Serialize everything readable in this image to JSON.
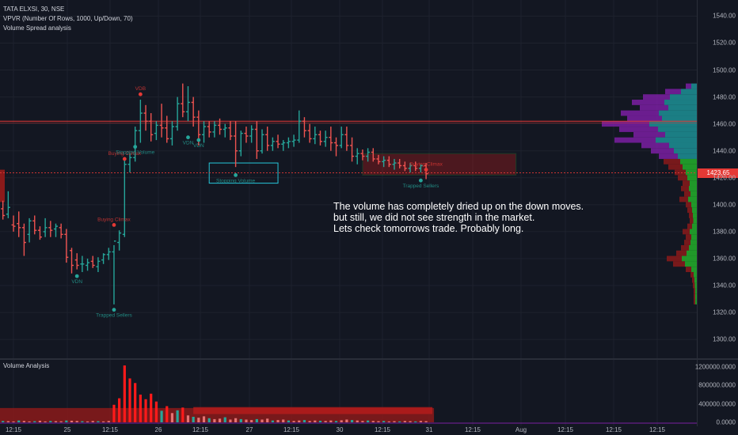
{
  "legend": {
    "symbol": "TATA ELXSI, 30, NSE",
    "indicator1": "VPVR (Number Of Rows, 1000, Up/Down, 70)",
    "indicator2": "Volume Spread analysis"
  },
  "volume_legend": "Volume Analysis",
  "note_lines": [
    "The volume has completely dried up on the down moves.",
    "but still, we did not see strength in the market.",
    "Lets check tomorrows trade. Probably long."
  ],
  "price_tag": "1423.65",
  "colors": {
    "bg": "#131722",
    "up": "#26a69a",
    "down": "#ef5350",
    "vol_bar": "#ff1a1a",
    "red_line": "#e53935",
    "vpvr_teal": "#1d8a8f",
    "vpvr_purple": "#7b1fa2",
    "vpvr_green": "#22a62a",
    "vpvr_darkred": "#8b1a1a"
  },
  "chart_data": [
    {
      "type": "ohlc",
      "symbol": "TATA ELXSI",
      "interval": "30",
      "y_axis": {
        "ticks": [
          1300,
          1320,
          1340,
          1360,
          1380,
          1400,
          1420,
          1440,
          1460,
          1480,
          1500,
          1520,
          1540
        ],
        "tick_labels": [
          "1300.00",
          "1320.00",
          "1340.00",
          "1360.00",
          "1380.00",
          "1400.00",
          "1420.00",
          "1440.00",
          "1460.00",
          "1480.00",
          "1500.00",
          "1520.00",
          "1540.00"
        ],
        "ylim": [
          1286,
          1552
        ]
      },
      "x_axis": {
        "tick_labels": [
          "12:15",
          "25",
          "12:15",
          "26",
          "12:15",
          "27",
          "12:15",
          "30",
          "12:15",
          "31",
          "12:15",
          "Aug",
          "12:15",
          "12:15",
          "12:15"
        ]
      },
      "last_price": 1423.65,
      "horizontal_line": 1462,
      "bars": [
        [
          1,
          1397,
          1403,
          1389,
          1392
        ],
        [
          2,
          1393,
          1410,
          1390,
          1398
        ],
        [
          3,
          1385,
          1392,
          1380,
          1384
        ],
        [
          4,
          1386,
          1395,
          1376,
          1383
        ],
        [
          5,
          1383,
          1386,
          1362,
          1372
        ],
        [
          6,
          1378,
          1390,
          1372,
          1388
        ],
        [
          7,
          1388,
          1392,
          1378,
          1381
        ],
        [
          8,
          1381,
          1384,
          1374,
          1376
        ],
        [
          9,
          1380,
          1390,
          1376,
          1383
        ],
        [
          10,
          1383,
          1388,
          1376,
          1381
        ],
        [
          11,
          1382,
          1386,
          1376,
          1384
        ],
        [
          12,
          1383,
          1386,
          1375,
          1378
        ],
        [
          13,
          1378,
          1382,
          1357,
          1361
        ],
        [
          14,
          1366,
          1368,
          1349,
          1355
        ],
        [
          15,
          1359,
          1364,
          1352,
          1355
        ],
        [
          16,
          1356,
          1362,
          1350,
          1356
        ],
        [
          17,
          1355,
          1360,
          1351,
          1357
        ],
        [
          18,
          1358,
          1362,
          1353,
          1355
        ],
        [
          19,
          1354,
          1361,
          1350,
          1358
        ],
        [
          20,
          1359,
          1364,
          1356,
          1363
        ],
        [
          21,
          1363,
          1368,
          1359,
          1365
        ],
        [
          22,
          1365,
          1370,
          1326,
          1373
        ],
        [
          23,
          1372,
          1381,
          1366,
          1379
        ],
        [
          24,
          1378,
          1433,
          1376,
          1430
        ],
        [
          25,
          1430,
          1438,
          1424,
          1435
        ],
        [
          26,
          1435,
          1458,
          1432,
          1455
        ],
        [
          27,
          1455,
          1478,
          1446,
          1468
        ],
        [
          28,
          1468,
          1474,
          1455,
          1462
        ],
        [
          29,
          1462,
          1468,
          1447,
          1452
        ],
        [
          30,
          1453,
          1462,
          1448,
          1459
        ],
        [
          31,
          1459,
          1475,
          1450,
          1457
        ],
        [
          32,
          1457,
          1466,
          1446,
          1449
        ],
        [
          33,
          1449,
          1462,
          1444,
          1458
        ],
        [
          34,
          1458,
          1480,
          1455,
          1475
        ],
        [
          35,
          1475,
          1490,
          1465,
          1469
        ],
        [
          36,
          1469,
          1488,
          1462,
          1476
        ],
        [
          37,
          1476,
          1480,
          1458,
          1465
        ],
        [
          38,
          1465,
          1470,
          1444,
          1452
        ],
        [
          39,
          1452,
          1462,
          1446,
          1458
        ],
        [
          40,
          1458,
          1462,
          1450,
          1454
        ],
        [
          41,
          1454,
          1462,
          1450,
          1459
        ],
        [
          42,
          1459,
          1464,
          1452,
          1456
        ],
        [
          43,
          1456,
          1460,
          1450,
          1457
        ],
        [
          44,
          1457,
          1462,
          1448,
          1451
        ],
        [
          45,
          1451,
          1462,
          1428,
          1440
        ],
        [
          46,
          1440,
          1455,
          1436,
          1453
        ],
        [
          47,
          1453,
          1458,
          1446,
          1451
        ],
        [
          48,
          1451,
          1459,
          1446,
          1456
        ],
        [
          49,
          1456,
          1462,
          1434,
          1440
        ],
        [
          50,
          1440,
          1456,
          1438,
          1452
        ],
        [
          51,
          1452,
          1458,
          1440,
          1444
        ],
        [
          52,
          1444,
          1450,
          1440,
          1447
        ],
        [
          53,
          1447,
          1452,
          1442,
          1445
        ],
        [
          54,
          1445,
          1448,
          1440,
          1446
        ],
        [
          55,
          1446,
          1450,
          1442,
          1447
        ],
        [
          56,
          1447,
          1452,
          1443,
          1448
        ],
        [
          57,
          1448,
          1470,
          1446,
          1462
        ],
        [
          58,
          1462,
          1465,
          1450,
          1455
        ],
        [
          59,
          1455,
          1460,
          1446,
          1449
        ],
        [
          60,
          1449,
          1458,
          1445,
          1452
        ],
        [
          61,
          1452,
          1455,
          1444,
          1447
        ],
        [
          62,
          1447,
          1455,
          1443,
          1450
        ],
        [
          63,
          1450,
          1458,
          1440,
          1446
        ],
        [
          64,
          1446,
          1450,
          1436,
          1444
        ],
        [
          65,
          1444,
          1458,
          1442,
          1452
        ],
        [
          66,
          1452,
          1458,
          1440,
          1444
        ],
        [
          67,
          1444,
          1450,
          1432,
          1436
        ],
        [
          68,
          1436,
          1442,
          1430,
          1438
        ],
        [
          69,
          1438,
          1441,
          1433,
          1436
        ],
        [
          70,
          1436,
          1442,
          1432,
          1439
        ],
        [
          71,
          1439,
          1442,
          1432,
          1434
        ],
        [
          72,
          1434,
          1437,
          1430,
          1432
        ],
        [
          73,
          1432,
          1436,
          1428,
          1433
        ],
        [
          74,
          1433,
          1436,
          1428,
          1430
        ],
        [
          75,
          1430,
          1434,
          1426,
          1431
        ],
        [
          76,
          1431,
          1434,
          1427,
          1429
        ],
        [
          77,
          1429,
          1432,
          1425,
          1427
        ],
        [
          78,
          1427,
          1431,
          1424,
          1429
        ],
        [
          79,
          1429,
          1432,
          1425,
          1427
        ],
        [
          80,
          1427,
          1430,
          1424,
          1429
        ],
        [
          81,
          1429,
          1431,
          1419,
          1423
        ]
      ],
      "markers": [
        {
          "label": "VDB",
          "i": 27,
          "price": 1482,
          "color": "#e53935",
          "pos": "above"
        },
        {
          "label": "Buying Climax",
          "i": 24,
          "price": 1434,
          "color": "#e53935",
          "pos": "above"
        },
        {
          "label": "Buying Climax",
          "i": 22,
          "price": 1385,
          "color": "#e53935",
          "pos": "above"
        },
        {
          "label": "Stopping Volume",
          "i": 26,
          "price": 1443,
          "color": "#26a69a",
          "pos": "below"
        },
        {
          "label": "VDN",
          "i": 36,
          "price": 1450,
          "color": "#26a69a",
          "pos": "below"
        },
        {
          "label": "VDN",
          "i": 38,
          "price": 1448,
          "color": "#26a69a",
          "pos": "below"
        },
        {
          "label": "VDN",
          "i": 15,
          "price": 1347,
          "color": "#26a69a",
          "pos": "below"
        },
        {
          "label": "Stopping Volume",
          "i": 45,
          "price": 1422,
          "color": "#26a69a",
          "pos": "below"
        },
        {
          "label": "Trapped Sellers",
          "i": 22,
          "price": 1322,
          "color": "#26a69a",
          "pos": "below"
        },
        {
          "label": "Trapped Sellers",
          "i": 80,
          "price": 1418,
          "color": "#26a69a",
          "pos": "below"
        },
        {
          "label": "Buying Climax",
          "i": 81,
          "price": 1426,
          "color": "#e53935",
          "pos": "above"
        }
      ],
      "zone_red": {
        "i_from": 69,
        "i_to": 98,
        "price_from": 1422,
        "price_to": 1438
      },
      "zone_box": {
        "i_from": 40,
        "i_to": 53,
        "price_from": 1416,
        "price_to": 1431
      },
      "vpvr_profile": [
        [
          1490,
          14
        ],
        [
          1486,
          40
        ],
        [
          1482,
          68
        ],
        [
          1478,
          82
        ],
        [
          1474,
          72
        ],
        [
          1470,
          96
        ],
        [
          1466,
          88
        ],
        [
          1462,
          120
        ],
        [
          1458,
          98
        ],
        [
          1454,
          80
        ],
        [
          1450,
          104
        ],
        [
          1446,
          70
        ],
        [
          1442,
          58
        ],
        [
          1438,
          48
        ],
        [
          1434,
          42
        ],
        [
          1430,
          36
        ],
        [
          1426,
          28
        ],
        [
          1422,
          24
        ],
        [
          1418,
          18
        ],
        [
          1414,
          20
        ],
        [
          1410,
          16
        ],
        [
          1406,
          22
        ],
        [
          1402,
          14
        ],
        [
          1398,
          12
        ],
        [
          1394,
          10
        ],
        [
          1390,
          9
        ],
        [
          1386,
          12
        ],
        [
          1382,
          18
        ],
        [
          1378,
          14
        ],
        [
          1374,
          16
        ],
        [
          1370,
          20
        ],
        [
          1366,
          26
        ],
        [
          1362,
          38
        ],
        [
          1358,
          30
        ],
        [
          1354,
          14
        ],
        [
          1350,
          8
        ],
        [
          1346,
          6
        ],
        [
          1342,
          5
        ],
        [
          1338,
          4
        ],
        [
          1334,
          4
        ],
        [
          1330,
          4
        ]
      ]
    },
    {
      "type": "bar",
      "name": "Volume Analysis",
      "y_axis": {
        "tick_labels": [
          "0.0000",
          "400000.0000",
          "800000.0000",
          "1200000.0000"
        ],
        "ylim": [
          0,
          1300000
        ]
      },
      "volumes": [
        30000,
        25000,
        20000,
        40000,
        30000,
        20000,
        25000,
        35000,
        20000,
        30000,
        25000,
        22000,
        40000,
        35000,
        30000,
        25000,
        20000,
        30000,
        25000,
        20000,
        30000,
        380000,
        520000,
        1230000,
        950000,
        850000,
        600000,
        500000,
        620000,
        450000,
        250000,
        350000,
        200000,
        260000,
        320000,
        150000,
        120000,
        100000,
        130000,
        90000,
        70000,
        80000,
        110000,
        60000,
        90000,
        70000,
        60000,
        50000,
        70000,
        60000,
        80000,
        40000,
        50000,
        60000,
        40000,
        30000,
        40000,
        50000,
        30000,
        40000,
        35000,
        30000,
        40000,
        30000,
        45000,
        60000,
        50000,
        40000,
        30000,
        40000,
        30000,
        25000,
        30000,
        20000,
        25000,
        20000,
        30000,
        25000,
        20000,
        30000,
        25000
      ]
    }
  ]
}
